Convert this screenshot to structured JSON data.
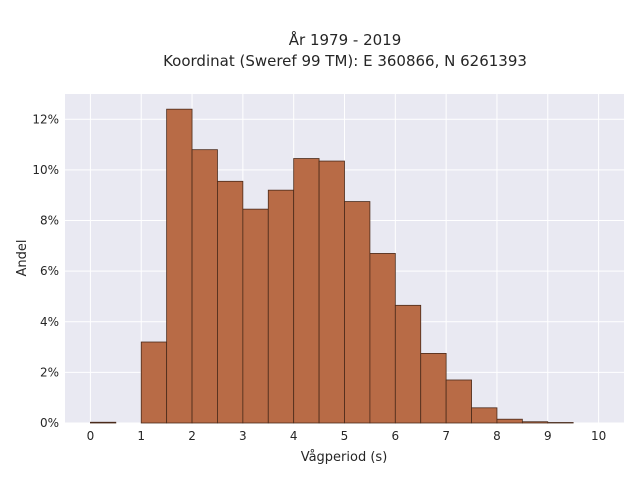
{
  "chart_data": {
    "type": "bar",
    "title_line1": "År 1979 - 2019",
    "title_line2": "Koordinat (Sweref 99 TM): E 360866, N 6261393",
    "xlabel": "Vågperiod (s)",
    "ylabel": "Andel",
    "bin_width": 0.5,
    "bins": [
      {
        "start": 0.0,
        "value": 0.0003
      },
      {
        "start": 0.5,
        "value": 0.0
      },
      {
        "start": 1.0,
        "value": 0.032
      },
      {
        "start": 1.5,
        "value": 0.124
      },
      {
        "start": 2.0,
        "value": 0.108
      },
      {
        "start": 2.5,
        "value": 0.0955
      },
      {
        "start": 3.0,
        "value": 0.0845
      },
      {
        "start": 3.5,
        "value": 0.092
      },
      {
        "start": 4.0,
        "value": 0.1045
      },
      {
        "start": 4.5,
        "value": 0.1035
      },
      {
        "start": 5.0,
        "value": 0.0875
      },
      {
        "start": 5.5,
        "value": 0.067
      },
      {
        "start": 6.0,
        "value": 0.0465
      },
      {
        "start": 6.5,
        "value": 0.0275
      },
      {
        "start": 7.0,
        "value": 0.017
      },
      {
        "start": 7.5,
        "value": 0.006
      },
      {
        "start": 8.0,
        "value": 0.0015
      },
      {
        "start": 8.5,
        "value": 0.0005
      },
      {
        "start": 9.0,
        "value": 0.0002
      }
    ],
    "xlim": [
      -0.5,
      10.5
    ],
    "ylim": [
      0,
      0.13
    ],
    "xticks": [
      0,
      1,
      2,
      3,
      4,
      5,
      6,
      7,
      8,
      9,
      10
    ],
    "xtick_labels": [
      "0",
      "1",
      "2",
      "3",
      "4",
      "5",
      "6",
      "7",
      "8",
      "9",
      "10"
    ],
    "yticks": [
      0,
      0.02,
      0.04,
      0.06,
      0.08,
      0.1,
      0.12
    ],
    "ytick_labels": [
      "0%",
      "2%",
      "4%",
      "6%",
      "8%",
      "10%",
      "12%"
    ],
    "grid": true,
    "bar_color": "#b86b46",
    "background_color": "#e9e9f2"
  }
}
